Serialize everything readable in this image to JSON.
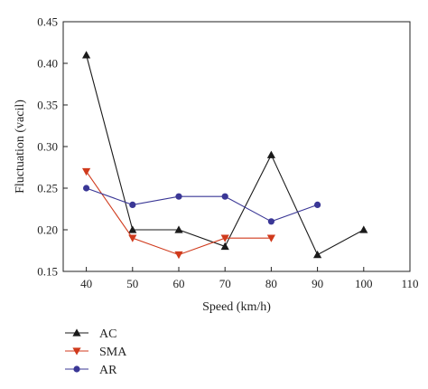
{
  "chart_data": {
    "type": "line",
    "title": "",
    "xlabel": "Speed (km/h)",
    "ylabel": "Fluctuation (vacil)",
    "xlim": [
      35,
      110
    ],
    "ylim": [
      0.15,
      0.45
    ],
    "xticks": [
      40,
      50,
      60,
      70,
      80,
      90,
      100,
      110
    ],
    "yticks": [
      0.15,
      0.2,
      0.25,
      0.3,
      0.35,
      0.4,
      0.45
    ],
    "xtick_labels": [
      "40",
      "50",
      "60",
      "70",
      "80",
      "90",
      "100",
      "110"
    ],
    "ytick_labels": [
      "0.15",
      "0.20",
      "0.25",
      "0.30",
      "0.35",
      "0.40",
      "0.45"
    ],
    "grid": false,
    "legend_position": "below",
    "series": [
      {
        "name": "AC",
        "color": "#1a1a1a",
        "marker": "triangle-up",
        "x": [
          40,
          50,
          60,
          70,
          80,
          90,
          100
        ],
        "y": [
          0.41,
          0.2,
          0.2,
          0.18,
          0.29,
          0.17,
          0.2
        ]
      },
      {
        "name": "SMA",
        "color": "#d03a1c",
        "marker": "triangle-down",
        "x": [
          40,
          50,
          60,
          70,
          80
        ],
        "y": [
          0.27,
          0.19,
          0.17,
          0.19,
          0.19
        ]
      },
      {
        "name": "AR",
        "color": "#3a3796",
        "marker": "circle",
        "x": [
          40,
          50,
          60,
          70,
          80,
          90
        ],
        "y": [
          0.25,
          0.23,
          0.24,
          0.24,
          0.21,
          0.23
        ]
      }
    ]
  }
}
